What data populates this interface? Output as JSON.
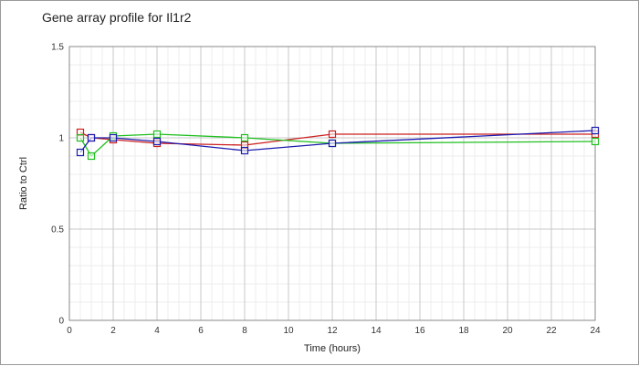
{
  "chart_data": {
    "type": "line",
    "title": "Gene array profile for Il1r2",
    "xlabel": "Time (hours)",
    "ylabel": "Ratio to Ctrl",
    "xlim": [
      0,
      24
    ],
    "ylim": [
      0,
      1.5
    ],
    "x_ticks": [
      0,
      2,
      4,
      6,
      8,
      10,
      12,
      14,
      16,
      18,
      20,
      22,
      24
    ],
    "y_ticks": [
      0,
      0.5,
      1,
      1.5
    ],
    "y_tick_labels": [
      "0",
      "0.5",
      "1",
      "1.5"
    ],
    "grid": true,
    "marker": "square",
    "series": [
      {
        "color": "#cc2020",
        "x": [
          0.5,
          1,
          2,
          4,
          8,
          12,
          24
        ],
        "values": [
          1.03,
          1.0,
          0.99,
          0.97,
          0.96,
          1.02,
          1.02
        ]
      },
      {
        "color": "#20c020",
        "x": [
          0.5,
          1,
          2,
          4,
          8,
          12,
          24
        ],
        "values": [
          1.0,
          0.9,
          1.01,
          1.02,
          1.0,
          0.97,
          0.98
        ]
      },
      {
        "color": "#1c1cb0",
        "x": [
          0.5,
          1,
          2,
          4,
          8,
          12,
          24
        ],
        "values": [
          0.92,
          1.0,
          1.0,
          0.98,
          0.93,
          0.97,
          1.04
        ]
      }
    ]
  }
}
